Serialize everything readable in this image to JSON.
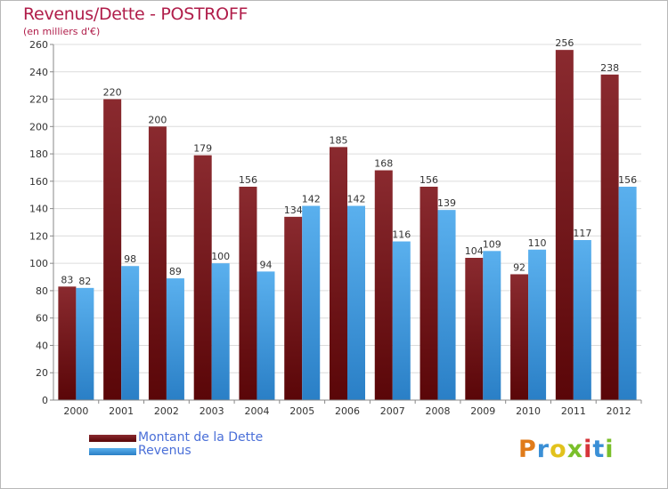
{
  "header": {
    "title": "Revenus/Dette - POSTROFF",
    "subtitle": "(en milliers d'€)"
  },
  "logo": {
    "text": "Proxiti",
    "letter_colors": [
      "#e07b1a",
      "#3a8fd6",
      "#e2c21c",
      "#7abf2a",
      "#d6353a",
      "#3a8fd6",
      "#7abf2a"
    ]
  },
  "colors": {
    "dette": "#6e0f14",
    "revenus": "#3f98dc",
    "grid": "#dcdcdc",
    "title": "#b01d4a"
  },
  "chart_data": {
    "type": "bar",
    "categories": [
      "2000",
      "2001",
      "2002",
      "2003",
      "2004",
      "2005",
      "2006",
      "2007",
      "2008",
      "2009",
      "2010",
      "2011",
      "2012"
    ],
    "series": [
      {
        "name": "Montant de la Dette",
        "values": [
          83,
          220,
          200,
          179,
          156,
          134,
          185,
          168,
          156,
          104,
          92,
          256,
          238
        ]
      },
      {
        "name": "Revenus",
        "values": [
          82,
          98,
          89,
          100,
          94,
          142,
          142,
          116,
          139,
          109,
          110,
          117,
          156
        ]
      }
    ],
    "ylim": [
      0,
      260
    ],
    "yticks": [
      0,
      20,
      40,
      60,
      80,
      100,
      120,
      140,
      160,
      180,
      200,
      220,
      240,
      260
    ],
    "grid": true,
    "legend": "bottom-left",
    "data_labels": true
  }
}
